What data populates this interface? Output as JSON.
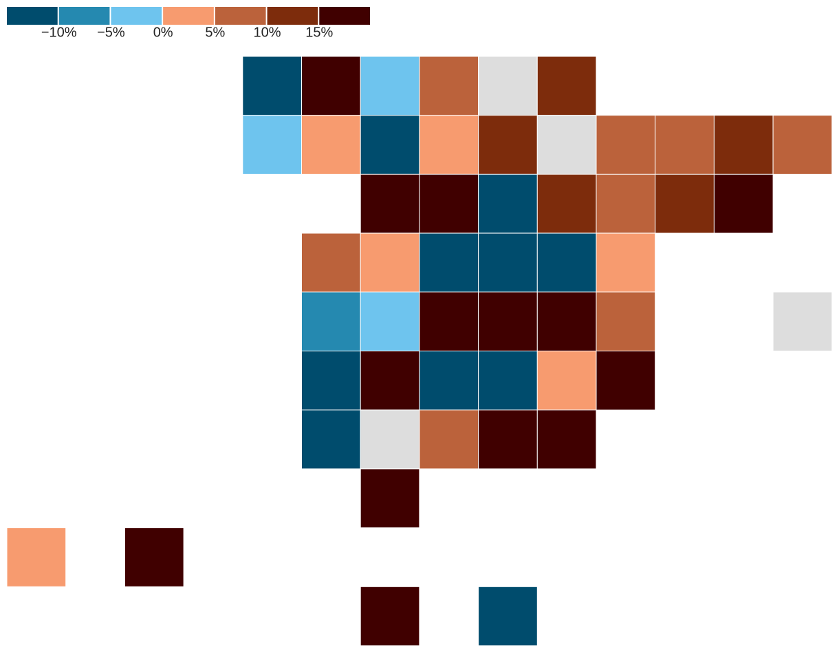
{
  "legend": {
    "colors": [
      "#004c6d",
      "#2589b0",
      "#6ec4ee",
      "#f79b6f",
      "#bb623b",
      "#7d2c0c",
      "#400000"
    ],
    "labels": [
      "−10%",
      "−5%",
      "0%",
      "5%",
      "10%",
      "15%"
    ]
  },
  "tiles": {
    "rows": [
      [
        null,
        null,
        null,
        null,
        "#004c6d",
        "#400000",
        "#6ec4ee",
        "#bb623b",
        "#dddddd",
        "#7d2c0c"
      ],
      [
        null,
        null,
        null,
        null,
        "#6ec4ee",
        "#f79b6f",
        "#004c6d",
        "#f79b6f",
        "#7d2c0c",
        "#dddddd",
        "#bb623b",
        "#bb623b",
        "#7d2c0c",
        "#bb623b"
      ],
      [
        null,
        null,
        null,
        null,
        null,
        null,
        "#400000",
        "#400000",
        "#004c6d",
        "#7d2c0c",
        "#bb623b",
        "#7d2c0c",
        "#400000"
      ],
      [
        null,
        null,
        null,
        null,
        null,
        "#bb623b",
        "#f79b6f",
        "#004c6d",
        "#004c6d",
        "#004c6d",
        "#f79b6f"
      ],
      [
        null,
        null,
        null,
        null,
        null,
        "#2589b0",
        "#6ec4ee",
        "#400000",
        "#400000",
        "#400000",
        "#bb623b",
        null,
        null,
        "#dddddd"
      ],
      [
        null,
        null,
        null,
        null,
        null,
        "#004c6d",
        "#400000",
        "#004c6d",
        "#004c6d",
        "#f79b6f",
        "#400000"
      ],
      [
        null,
        null,
        null,
        null,
        null,
        "#004c6d",
        "#dddddd",
        "#bb623b",
        "#400000",
        "#400000"
      ],
      [
        null,
        null,
        null,
        null,
        null,
        null,
        "#400000"
      ],
      [
        "#f79b6f",
        null,
        "#400000"
      ],
      [
        null,
        null,
        null,
        null,
        null,
        null,
        "#400000",
        null,
        "#004c6d"
      ]
    ]
  }
}
